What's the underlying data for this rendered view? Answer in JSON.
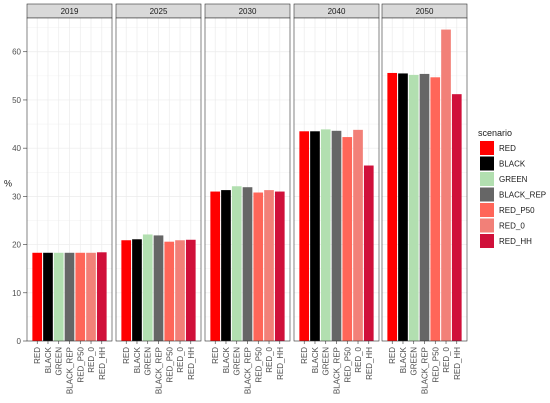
{
  "chart_data": {
    "type": "bar",
    "facets": [
      "2019",
      "2025",
      "2030",
      "2040",
      "2050"
    ],
    "categories": [
      "RED",
      "BLACK",
      "GREEN",
      "BLACK_REP",
      "RED_P50",
      "RED_0",
      "RED_HH"
    ],
    "ylabel": "%",
    "xlabel": "",
    "ylim": [
      0,
      67
    ],
    "yticks": [
      0,
      10,
      20,
      30,
      40,
      50,
      60
    ],
    "grid": true,
    "legend": {
      "title": "scenario",
      "position": "right",
      "items": [
        "RED",
        "BLACK",
        "GREEN",
        "BLACK_REP",
        "RED_P50",
        "RED_0",
        "RED_HH"
      ]
    },
    "colors": {
      "RED": "#ff0000",
      "BLACK": "#000000",
      "GREEN": "#b2dfb0",
      "BLACK_REP": "#666666",
      "RED_P50": "#ff6659",
      "RED_0": "#f28078",
      "RED_HH": "#d0103a"
    },
    "values": {
      "2019": [
        18.3,
        18.3,
        18.3,
        18.3,
        18.3,
        18.3,
        18.4
      ],
      "2025": [
        20.9,
        21.1,
        22.1,
        21.9,
        20.6,
        20.9,
        21.0
      ],
      "2030": [
        31.0,
        31.3,
        32.1,
        31.9,
        30.8,
        31.3,
        31.0
      ],
      "2040": [
        43.5,
        43.5,
        43.9,
        43.6,
        42.3,
        43.8,
        36.4
      ],
      "2050": [
        55.6,
        55.5,
        55.2,
        55.4,
        54.7,
        64.6,
        51.2
      ]
    }
  }
}
